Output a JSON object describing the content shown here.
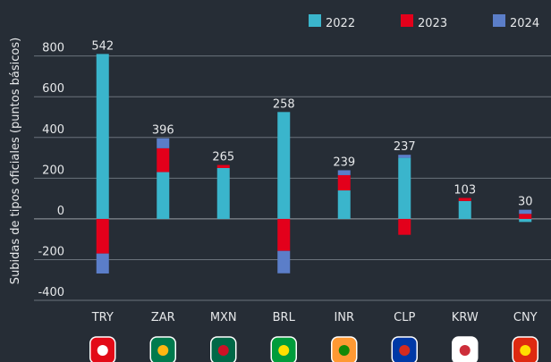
{
  "chart_data": {
    "type": "bar",
    "stacked": true,
    "ylabel": "Subidas de tipos oficiales (puntos básicos)",
    "categories": [
      "TRY",
      "ZAR",
      "MXN",
      "BRL",
      "INR",
      "CLP",
      "KRW",
      "CNY"
    ],
    "series": [
      {
        "name": "2022",
        "color": "#3ab5cc",
        "values": [
          810,
          230,
          250,
          525,
          140,
          300,
          88,
          -15
        ]
      },
      {
        "name": "2023",
        "color": "#e3001b",
        "values": [
          -170,
          117,
          15,
          -157,
          75,
          -78,
          15,
          25
        ]
      },
      {
        "name": "2024",
        "color": "#5b7ec9",
        "values": [
          -98,
          49,
          0,
          -110,
          24,
          15,
          0,
          20
        ]
      }
    ],
    "totals": [
      542,
      396,
      265,
      258,
      239,
      237,
      103,
      30
    ],
    "ylim": [
      -470,
      860
    ],
    "yticks": [
      -400,
      -200,
      0,
      200,
      400,
      600,
      800
    ],
    "grid": true
  }
}
